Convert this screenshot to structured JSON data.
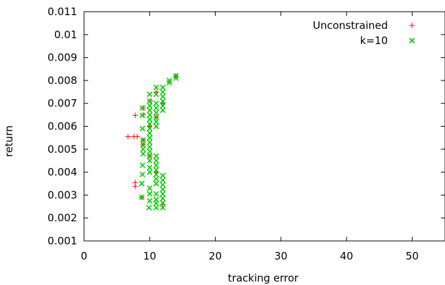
{
  "chart_data": {
    "type": "scatter",
    "title": "",
    "xlabel": "tracking error",
    "ylabel": "return",
    "xlim": [
      0,
      55
    ],
    "ylim": [
      0.001,
      0.011
    ],
    "xticks": [
      0,
      10,
      20,
      30,
      40,
      50
    ],
    "xtick_labels": [
      "0",
      "10",
      "20",
      "30",
      "40",
      "50"
    ],
    "yticks": [
      0.001,
      0.002,
      0.003,
      0.004,
      0.005,
      0.006,
      0.007,
      0.008,
      0.009,
      0.01,
      0.011
    ],
    "ytick_labels": [
      "0.001",
      "0.002",
      "0.003",
      "0.004",
      "0.005",
      "0.006",
      "0.007",
      "0.008",
      "0.009",
      "0.01",
      "0.011"
    ],
    "grid": false,
    "legend_position": "top-right",
    "series": [
      {
        "name": "Unconstrained",
        "marker": "plus",
        "color": "#ff0000",
        "points": [
          [
            6.7,
            0.00555
          ],
          [
            7.6,
            0.00555
          ],
          [
            8.1,
            0.00555
          ],
          [
            7.8,
            0.00648
          ],
          [
            7.8,
            0.00355
          ],
          [
            7.8,
            0.00338
          ],
          [
            8.8,
            0.0029
          ],
          [
            9.0,
            0.0052
          ],
          [
            9.0,
            0.0054
          ],
          [
            9.0,
            0.0068
          ],
          [
            9.0,
            0.0065
          ],
          [
            10.0,
            0.0047
          ],
          [
            10.0,
            0.006
          ],
          [
            10.1,
            0.0071
          ],
          [
            11.0,
            0.0075
          ],
          [
            11.0,
            0.0064
          ],
          [
            11.0,
            0.004
          ],
          [
            12.0,
            0.007
          ],
          [
            12.0,
            0.0026
          ],
          [
            14.0,
            0.0082
          ]
        ]
      },
      {
        "name": "k=10",
        "marker": "cross",
        "color": "#00cc00",
        "points": [
          [
            8.8,
            0.0029
          ],
          [
            8.8,
            0.0035
          ],
          [
            8.9,
            0.0039
          ],
          [
            8.9,
            0.0043
          ],
          [
            9.0,
            0.0048
          ],
          [
            9.0,
            0.005
          ],
          [
            9.0,
            0.0052
          ],
          [
            9.0,
            0.0054
          ],
          [
            8.9,
            0.0059
          ],
          [
            8.9,
            0.00648
          ],
          [
            8.9,
            0.0068
          ],
          [
            9.9,
            0.00245
          ],
          [
            10.0,
            0.00275
          ],
          [
            10.0,
            0.00305
          ],
          [
            10.0,
            0.0033
          ],
          [
            10.0,
            0.004
          ],
          [
            10.0,
            0.0042
          ],
          [
            10.0,
            0.0045
          ],
          [
            10.0,
            0.0047
          ],
          [
            10.0,
            0.0049
          ],
          [
            10.0,
            0.0051
          ],
          [
            10.0,
            0.0053
          ],
          [
            10.0,
            0.0055
          ],
          [
            10.0,
            0.0057
          ],
          [
            10.0,
            0.0059
          ],
          [
            10.0,
            0.0061
          ],
          [
            10.0,
            0.0063
          ],
          [
            10.0,
            0.0065
          ],
          [
            10.0,
            0.0067
          ],
          [
            10.0,
            0.0069
          ],
          [
            10.0,
            0.0071
          ],
          [
            10.0,
            0.0074
          ],
          [
            11.0,
            0.00245
          ],
          [
            11.0,
            0.00265
          ],
          [
            11.0,
            0.0028
          ],
          [
            11.0,
            0.00305
          ],
          [
            11.0,
            0.0035
          ],
          [
            11.0,
            0.0037
          ],
          [
            11.0,
            0.0039
          ],
          [
            11.0,
            0.0041
          ],
          [
            11.0,
            0.0043
          ],
          [
            11.0,
            0.0045
          ],
          [
            11.0,
            0.0047
          ],
          [
            11.0,
            0.006
          ],
          [
            11.0,
            0.0062
          ],
          [
            11.0,
            0.0064
          ],
          [
            11.0,
            0.0066
          ],
          [
            11.0,
            0.0068
          ],
          [
            11.0,
            0.007
          ],
          [
            11.0,
            0.0074
          ],
          [
            11.0,
            0.0077
          ],
          [
            12.0,
            0.00245
          ],
          [
            12.0,
            0.00265
          ],
          [
            12.0,
            0.00285
          ],
          [
            12.0,
            0.00305
          ],
          [
            12.0,
            0.00325
          ],
          [
            12.0,
            0.00345
          ],
          [
            12.0,
            0.00365
          ],
          [
            12.0,
            0.00385
          ],
          [
            12.0,
            0.0067
          ],
          [
            12.0,
            0.0069
          ],
          [
            12.0,
            0.0071
          ],
          [
            12.0,
            0.0073
          ],
          [
            12.0,
            0.0075
          ],
          [
            12.0,
            0.0077
          ],
          [
            13.0,
            0.0079
          ],
          [
            13.0,
            0.008
          ],
          [
            14.0,
            0.0081
          ],
          [
            14.0,
            0.0082
          ]
        ]
      }
    ]
  }
}
